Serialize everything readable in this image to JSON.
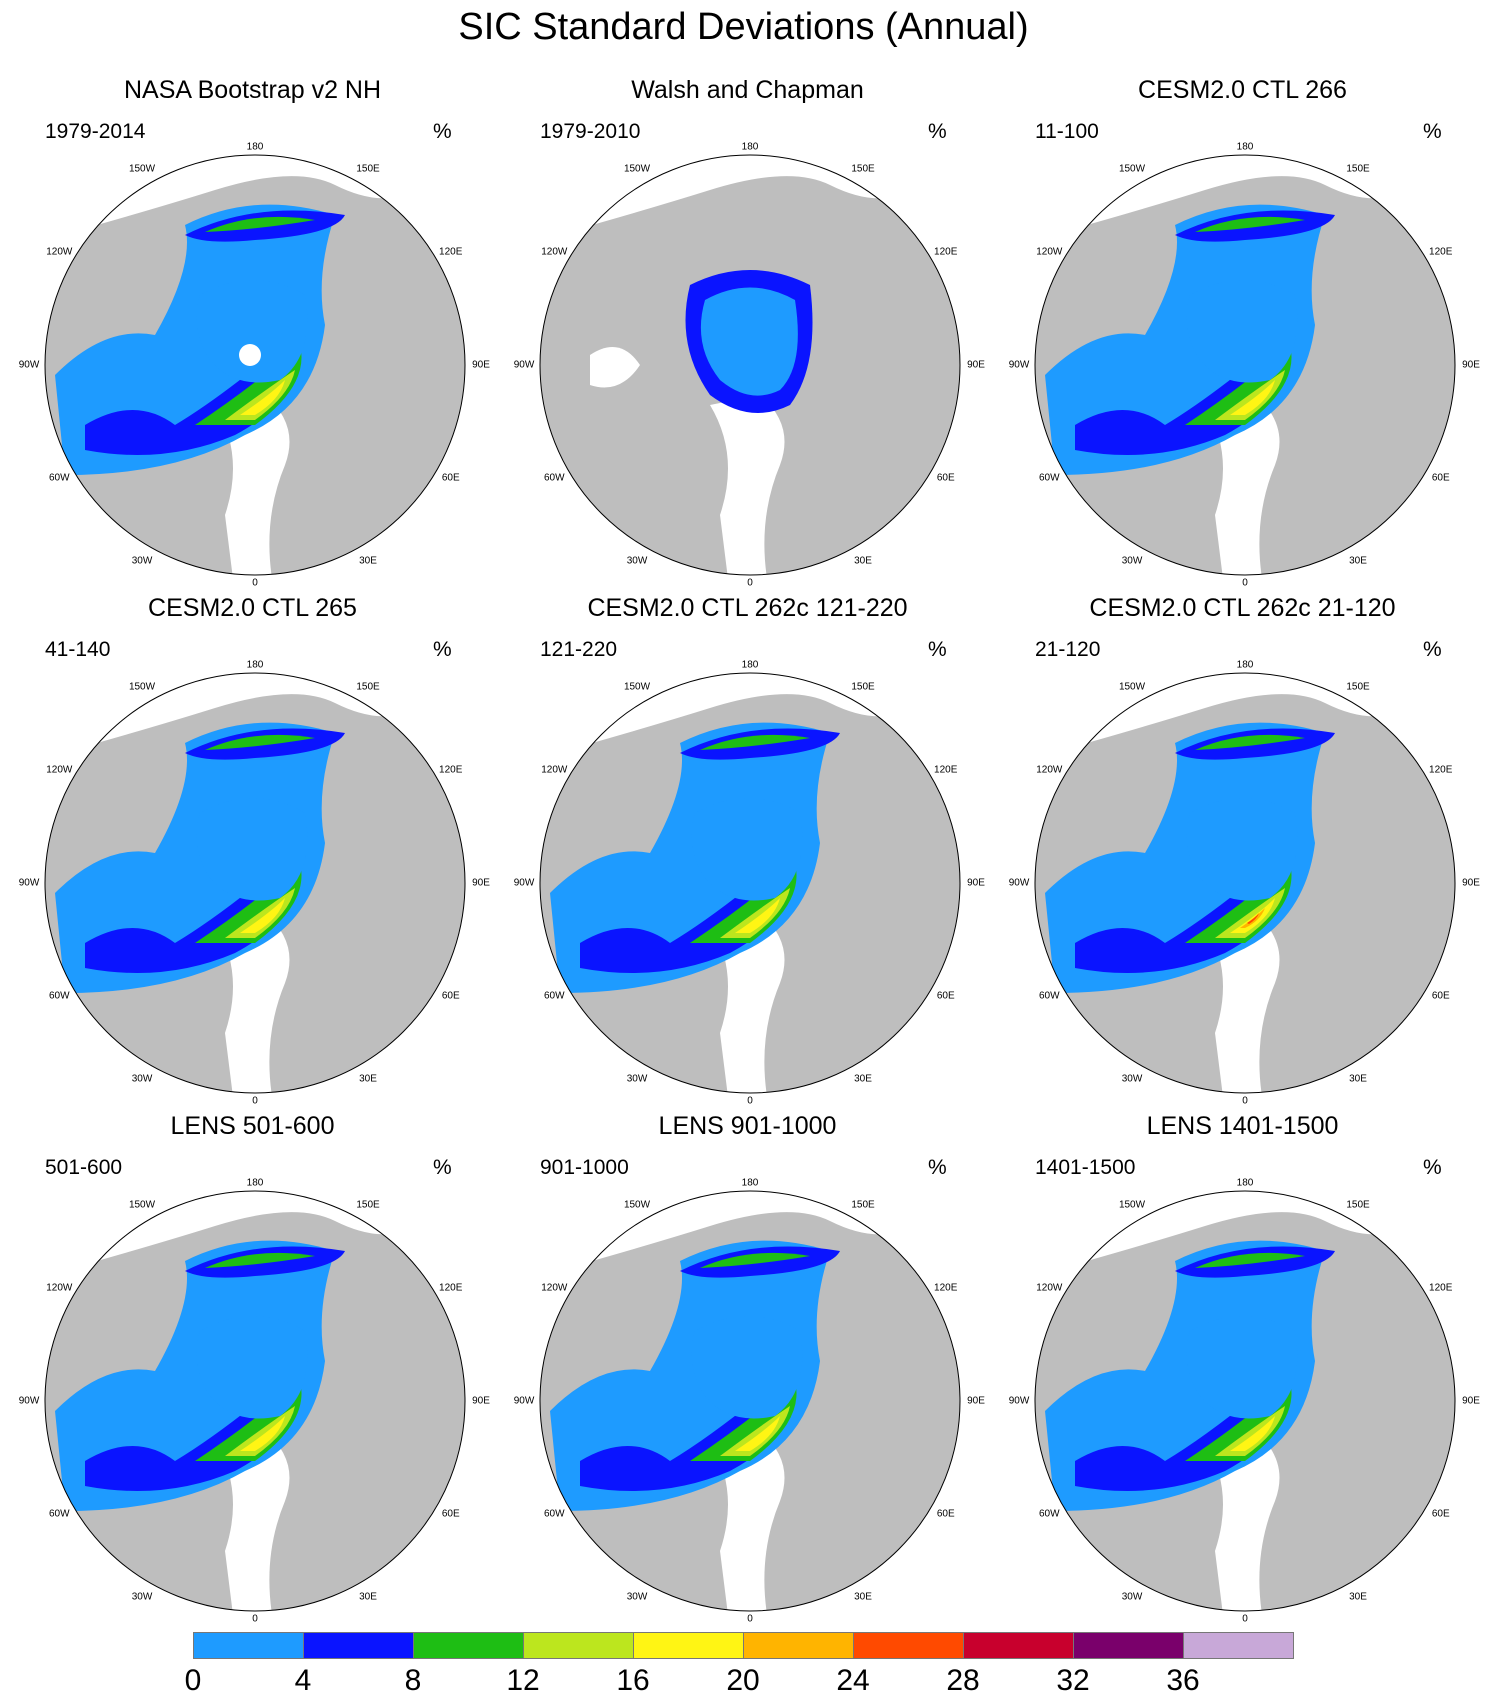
{
  "title": "SIC Standard Deviations (Annual)",
  "units": "%",
  "lon_labels": [
    "180",
    "150E",
    "120E",
    "90E",
    "60E",
    "30E",
    "0",
    "30W",
    "60W",
    "90W",
    "120W",
    "150W"
  ],
  "panels": [
    {
      "title": "NASA Bootstrap v2 NH",
      "period": "1979-2014",
      "ice_pattern": "observational, pole hole"
    },
    {
      "title": "Walsh and Chapman",
      "period": "1979-2010",
      "ice_pattern": "central Arctic only"
    },
    {
      "title": "CESM2.0 CTL 266",
      "period": "11-100",
      "ice_pattern": "model"
    },
    {
      "title": "CESM2.0 CTL 265",
      "period": "41-140",
      "ice_pattern": "model"
    },
    {
      "title": "CESM2.0 CTL 262c 121-220",
      "period": "121-220",
      "ice_pattern": "model"
    },
    {
      "title": "CESM2.0 CTL 262c 21-120",
      "period": "21-120",
      "ice_pattern": "model, local max 24-28"
    },
    {
      "title": "LENS 501-600",
      "period": "501-600",
      "ice_pattern": "model"
    },
    {
      "title": "LENS 901-1000",
      "period": "901-1000",
      "ice_pattern": "model"
    },
    {
      "title": "LENS 1401-1500",
      "period": "1401-1500",
      "ice_pattern": "model"
    }
  ],
  "colorbar": {
    "ticks": [
      "0",
      "4",
      "8",
      "12",
      "16",
      "20",
      "24",
      "28",
      "32",
      "36"
    ],
    "colors": [
      "#1e9bff",
      "#0a14ff",
      "#1ebe14",
      "#bce61e",
      "#fff514",
      "#ffb400",
      "#ff4a00",
      "#c8002d",
      "#7a006b",
      "#c8a8d8"
    ]
  },
  "style": {
    "land_color": "#bebebe",
    "ocean_color": "#ffffff"
  }
}
